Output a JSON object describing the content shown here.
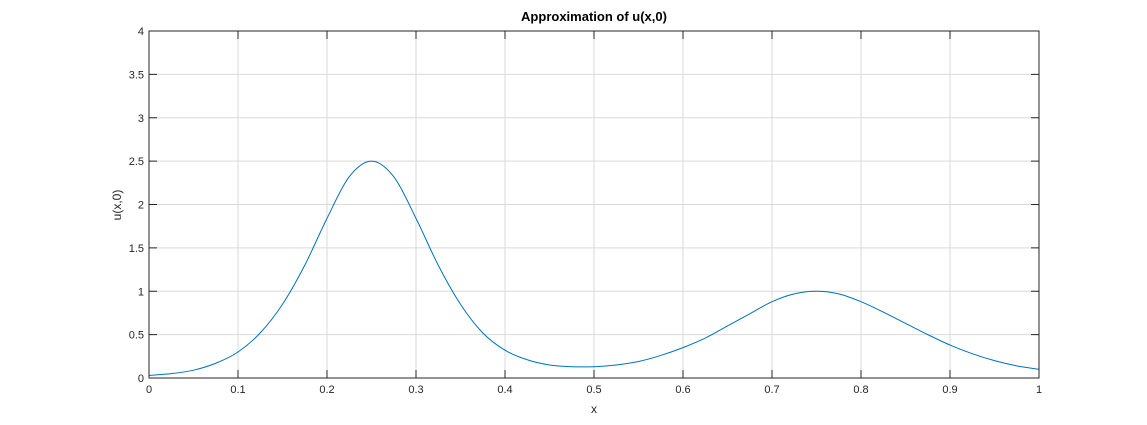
{
  "chart_data": {
    "type": "line",
    "title": "Approximation of u(x,0)",
    "xlabel": "x",
    "ylabel": "u(x,0)",
    "xlim": [
      0,
      1
    ],
    "ylim": [
      0,
      4
    ],
    "xticks": [
      "0",
      "0.1",
      "0.2",
      "0.3",
      "0.4",
      "0.5",
      "0.6",
      "0.7",
      "0.8",
      "0.9",
      "1"
    ],
    "yticks": [
      "0",
      "0.5",
      "1",
      "1.5",
      "2",
      "2.5",
      "3",
      "3.5",
      "4"
    ],
    "grid": true,
    "series": [
      {
        "color": "#0072bd",
        "x": [
          0,
          0.025,
          0.05,
          0.075,
          0.1,
          0.125,
          0.15,
          0.175,
          0.2,
          0.225,
          0.25,
          0.275,
          0.3,
          0.325,
          0.35,
          0.375,
          0.4,
          0.425,
          0.45,
          0.475,
          0.5,
          0.525,
          0.55,
          0.575,
          0.6,
          0.625,
          0.65,
          0.675,
          0.7,
          0.725,
          0.75,
          0.775,
          0.8,
          0.825,
          0.85,
          0.875,
          0.9,
          0.925,
          0.95,
          0.975,
          1
        ],
        "y": [
          0.03,
          0.05,
          0.09,
          0.17,
          0.3,
          0.52,
          0.85,
          1.3,
          1.84,
          2.32,
          2.5,
          2.32,
          1.84,
          1.3,
          0.85,
          0.52,
          0.32,
          0.21,
          0.15,
          0.13,
          0.13,
          0.15,
          0.19,
          0.26,
          0.35,
          0.46,
          0.6,
          0.74,
          0.88,
          0.97,
          1.0,
          0.97,
          0.88,
          0.76,
          0.63,
          0.5,
          0.38,
          0.28,
          0.2,
          0.14,
          0.1
        ]
      }
    ]
  }
}
